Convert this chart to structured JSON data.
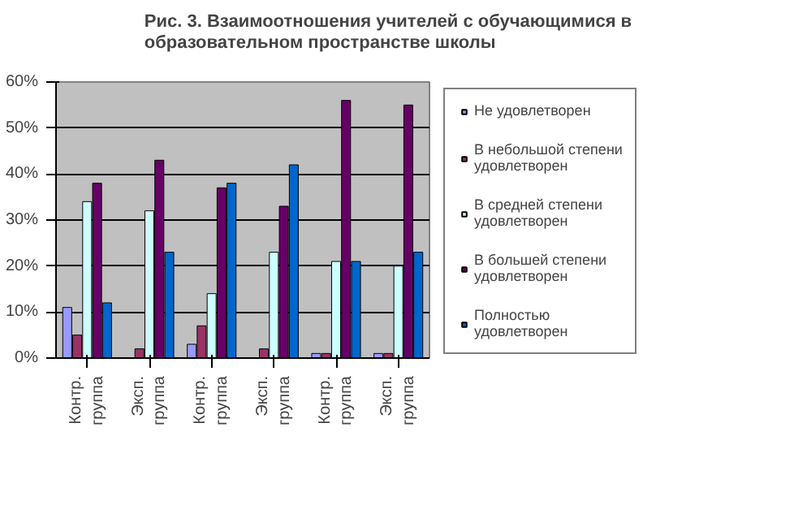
{
  "chart_data": {
    "type": "bar",
    "title": "Рис. 3. Взаимоотношения  учителей с обучающимися в образовательном пространстве школы",
    "categories": [
      "Контр. группа",
      "Эксп. группа",
      "Контр. группа",
      "Эксп. группа",
      "Контр. группа",
      "Эксп. группа"
    ],
    "series": [
      {
        "name": "Не удовлетворен",
        "color": "#9999ff",
        "values": [
          11,
          0,
          3,
          0,
          1,
          1
        ]
      },
      {
        "name": "В небольшой степени удовлетворен",
        "color": "#993366",
        "values": [
          5,
          2,
          7,
          2,
          1,
          1
        ]
      },
      {
        "name": "В средней степени удовлетворен",
        "color": "#ccffff",
        "values": [
          34,
          32,
          14,
          23,
          21,
          20
        ]
      },
      {
        "name": "В большей степени удовлетворен",
        "color": "#660066",
        "values": [
          38,
          43,
          37,
          33,
          56,
          55
        ]
      },
      {
        "name": "Полностью удовлетворен",
        "color": "#0066cc",
        "values": [
          12,
          23,
          38,
          42,
          21,
          23
        ]
      }
    ],
    "ylim": [
      0,
      60
    ],
    "yticks": [
      {
        "value": 0,
        "label": "0%"
      },
      {
        "value": 10,
        "label": "10%"
      },
      {
        "value": 20,
        "label": "20%"
      },
      {
        "value": 30,
        "label": "30%"
      },
      {
        "value": 40,
        "label": "40%"
      },
      {
        "value": 50,
        "label": "50%"
      },
      {
        "value": 60,
        "label": "60%"
      }
    ],
    "grid": "y",
    "legend": "right"
  }
}
